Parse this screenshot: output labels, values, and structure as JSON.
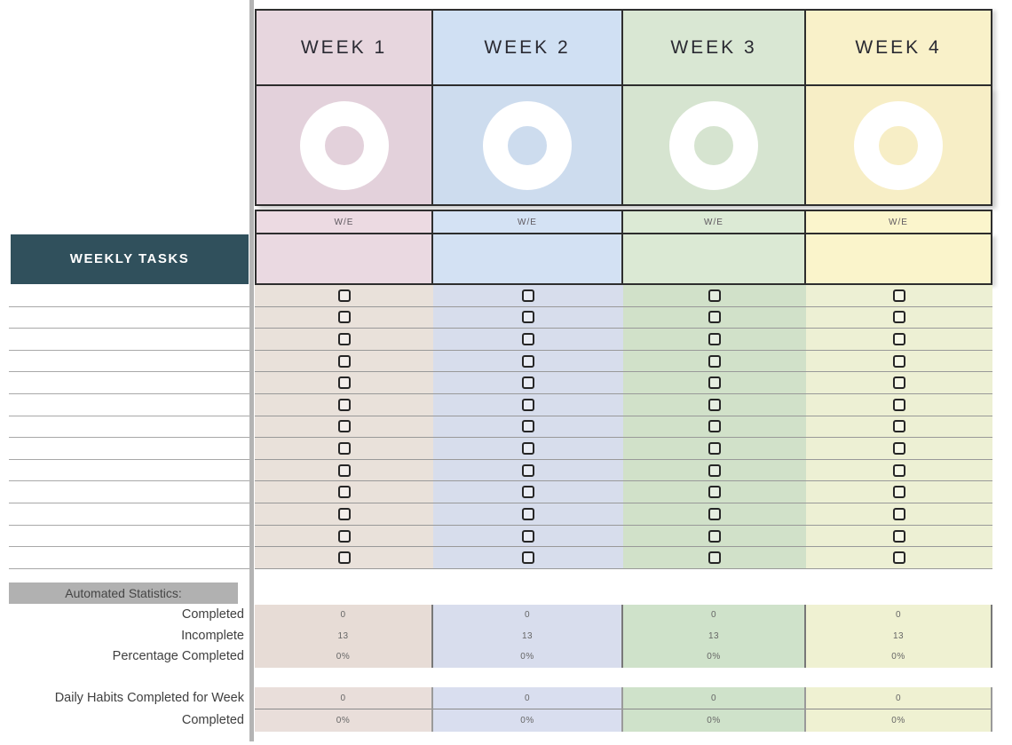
{
  "page": {
    "background": "#ffffff",
    "divider_color": "#b4b4b4",
    "border_dark": "#2e2e2e"
  },
  "sidebar": {
    "weekly_tasks_title": "WEEKLY TASKS",
    "weekly_tasks_bg": "#30505c",
    "task_row_count": 13
  },
  "statistics": {
    "section_title": "Automated Statistics:",
    "section_title_bg": "#b1b1b1",
    "labels": {
      "completed": "Completed",
      "incomplete": "Incomplete",
      "percentage": "Percentage Completed",
      "daily_habits": "Daily Habits Completed for Week",
      "daily_completed": "Completed"
    }
  },
  "weeks": [
    {
      "label": "WEEK 1",
      "we_label": "W/E",
      "date_value": "",
      "colors": {
        "header": "#e7d6de",
        "donut": "#e3d1db",
        "we": "#ecdae2",
        "entry": "#ead9e1",
        "rows": "#e9e1da",
        "stats": "#e7dcd6",
        "daily": "#e9deda"
      },
      "stats": {
        "completed": "0",
        "incomplete": "13",
        "percentage": "0%",
        "daily_habits": "0",
        "daily_completed": "0%"
      }
    },
    {
      "label": "WEEK 2",
      "we_label": "W/E",
      "date_value": "",
      "colors": {
        "header": "#d0e0f3",
        "donut": "#cddcee",
        "we": "#d4e2f4",
        "entry": "#d3e1f3",
        "rows": "#d7ddec",
        "stats": "#d8dded",
        "daily": "#d9deef"
      },
      "stats": {
        "completed": "0",
        "incomplete": "13",
        "percentage": "0%",
        "daily_habits": "0",
        "daily_completed": "0%"
      }
    },
    {
      "label": "WEEK 3",
      "we_label": "W/E",
      "date_value": "",
      "colors": {
        "header": "#d9e7d3",
        "donut": "#d6e4d0",
        "we": "#dcead5",
        "entry": "#dbe9d4",
        "rows": "#d1e1c9",
        "stats": "#cfe2ca",
        "daily": "#cfe2ca"
      },
      "stats": {
        "completed": "0",
        "incomplete": "13",
        "percentage": "0%",
        "daily_habits": "0",
        "daily_completed": "0%"
      }
    },
    {
      "label": "WEEK 4",
      "we_label": "W/E",
      "date_value": "",
      "colors": {
        "header": "#f9f1c9",
        "donut": "#f7eec6",
        "we": "#fbf5cc",
        "entry": "#faf4cb",
        "rows": "#edf0d4",
        "stats": "#eff1d2",
        "daily": "#eff1d2"
      },
      "stats": {
        "completed": "0",
        "incomplete": "13",
        "percentage": "0%",
        "daily_habits": "0",
        "daily_completed": "0%"
      }
    }
  ]
}
